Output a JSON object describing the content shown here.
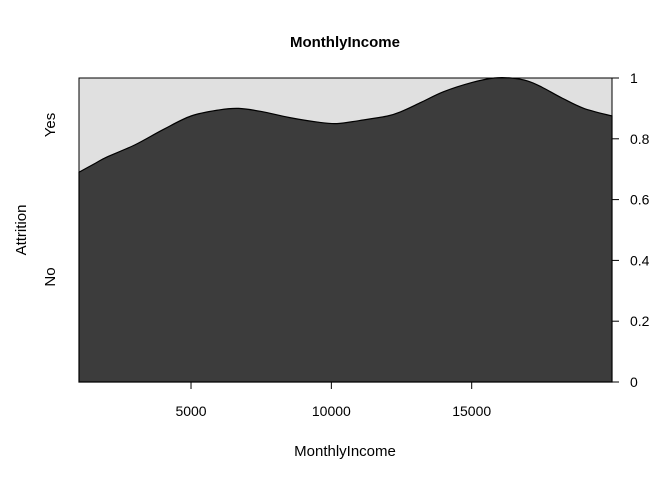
{
  "chart_data": {
    "type": "area",
    "subtype": "conditional-density",
    "title": "MonthlyIncome",
    "xlabel": "MonthlyIncome",
    "ylabel": "Attrition",
    "categories": [
      "No",
      "Yes"
    ],
    "xlim": [
      1009,
      19999
    ],
    "ylim": [
      0,
      1
    ],
    "x_ticks": [
      "5000",
      "10000",
      "15000"
    ],
    "y_ticks": [
      "0",
      "0.2",
      "0.4",
      "0.6",
      "0.8",
      "1"
    ],
    "colors": {
      "No": "#3c3c3c",
      "Yes": "#e0e0e0"
    },
    "series": [
      {
        "name": "No",
        "x": [
          1009,
          1600,
          2000,
          3000,
          4000,
          5000,
          6000,
          6700,
          7500,
          8500,
          9500,
          10200,
          11000,
          12000,
          12500,
          13200,
          14000,
          15000,
          15800,
          16400,
          17000,
          17500,
          18200,
          19000,
          19999
        ],
        "values": [
          0.69,
          0.72,
          0.74,
          0.78,
          0.83,
          0.875,
          0.895,
          0.9,
          0.89,
          0.87,
          0.855,
          0.85,
          0.86,
          0.875,
          0.89,
          0.92,
          0.955,
          0.985,
          1.0,
          1.0,
          0.99,
          0.97,
          0.935,
          0.9,
          0.875
        ]
      }
    ]
  }
}
